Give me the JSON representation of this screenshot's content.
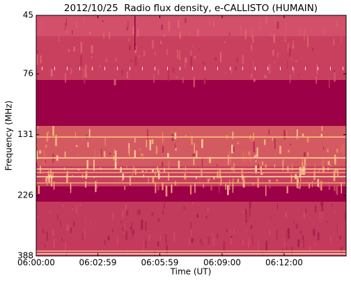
{
  "chart_data": {
    "type": "spectrogram",
    "title": "2012/10/25  Radio flux density, e-CALLISTO (HUMAIN)",
    "x_label": "Time (UT)",
    "y_label": "Frequency (MHz)",
    "xlim": [
      0,
      900
    ],
    "xticks": [
      {
        "value": 0,
        "label": "06:00:00"
      },
      {
        "value": 179,
        "label": "06:02:59"
      },
      {
        "value": 359,
        "label": "06:05:59"
      },
      {
        "value": 540,
        "label": "06:09:00"
      },
      {
        "value": 720,
        "label": "06:12:00"
      }
    ],
    "ylim": [
      45,
      388
    ],
    "yticks": [
      45,
      76,
      131,
      226,
      388
    ],
    "y_log": true,
    "y_inverted": true
  }
}
